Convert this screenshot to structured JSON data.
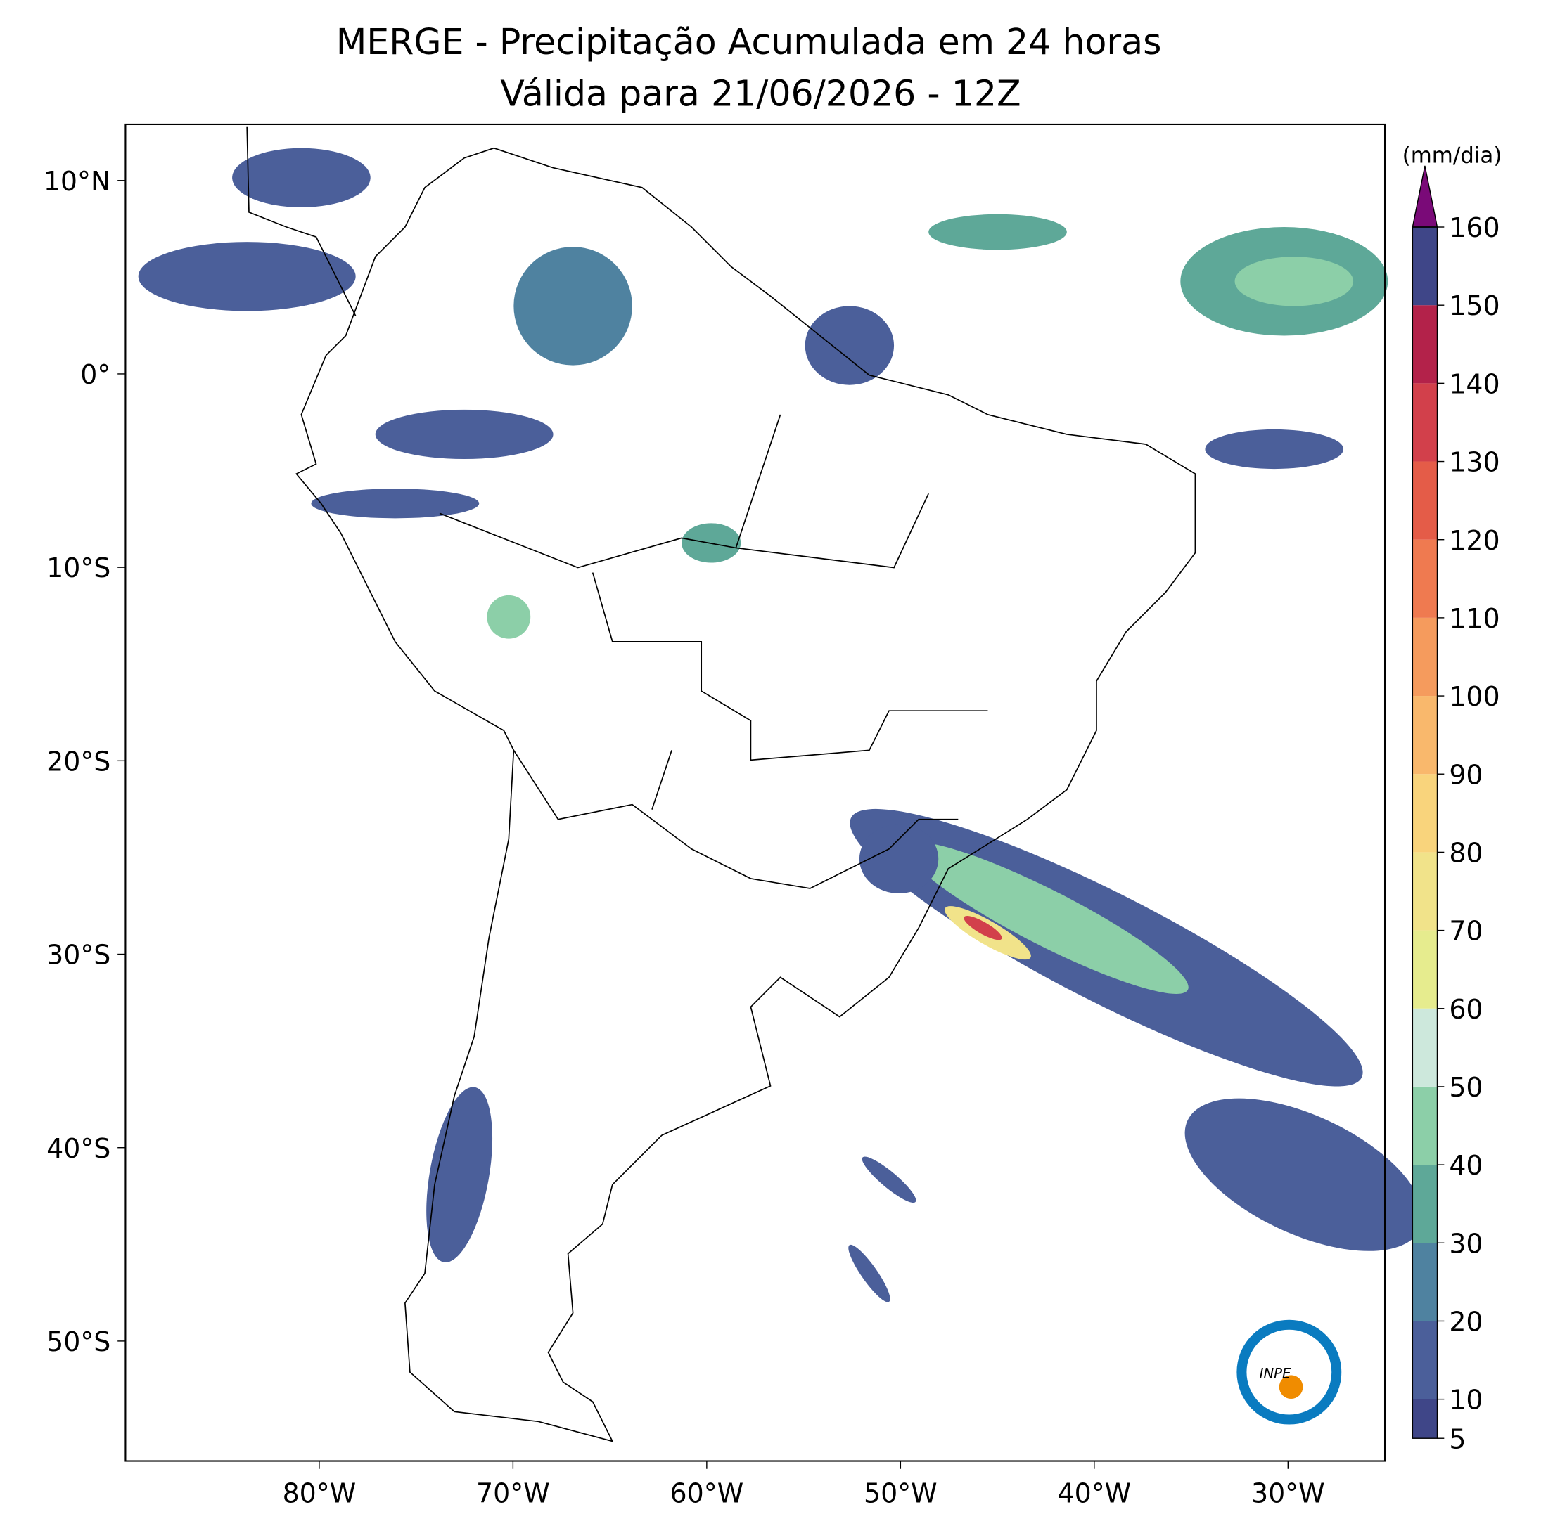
{
  "title": "MERGE - Precipitação Acumulada em 24 horas",
  "subtitle": "Válida para 21/06/2026 - 12Z",
  "map": {
    "xlim": [
      -90,
      -25
    ],
    "ylim": [
      -56.2,
      12.9
    ],
    "xticks": [
      {
        "value": -80,
        "label": "80°W"
      },
      {
        "value": -70,
        "label": "70°W"
      },
      {
        "value": -60,
        "label": "60°W"
      },
      {
        "value": -50,
        "label": "50°W"
      },
      {
        "value": -40,
        "label": "40°W"
      },
      {
        "value": -30,
        "label": "30°W"
      }
    ],
    "yticks": [
      {
        "value": 10,
        "label": "10°N"
      },
      {
        "value": 0,
        "label": "0°"
      },
      {
        "value": -10,
        "label": "10°S"
      },
      {
        "value": -20,
        "label": "20°S"
      },
      {
        "value": -30,
        "label": "30°S"
      },
      {
        "value": -40,
        "label": "40°S"
      },
      {
        "value": -50,
        "label": "50°S"
      }
    ]
  },
  "colorbar": {
    "label": "(mm/dia)",
    "lim": [
      5,
      160
    ],
    "ticks": [
      5,
      10,
      20,
      30,
      40,
      50,
      60,
      70,
      80,
      90,
      100,
      110,
      120,
      130,
      140,
      150,
      160
    ],
    "colors": [
      "#3f4688",
      "#4b5f9a",
      "#4f82a0",
      "#5ea898",
      "#8ccfa8",
      "#cde8dc",
      "#e6ec8e",
      "#f1e38a",
      "#f9d47c",
      "#f9b86c",
      "#f59b5d",
      "#ef7a50",
      "#e45c48",
      "#d2404b",
      "#b3224a"
    ],
    "extend_color": "#7a0a78"
  },
  "logo": "INPE"
}
